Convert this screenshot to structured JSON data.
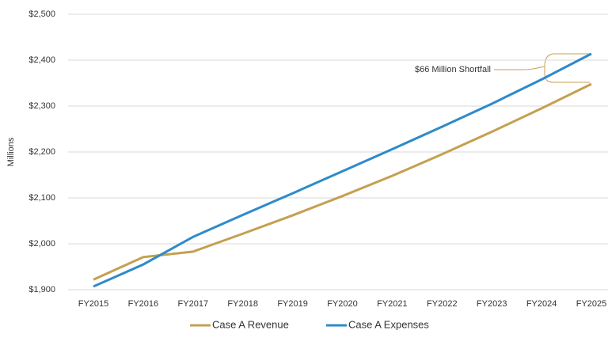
{
  "chart_data": {
    "type": "line",
    "y_label": "Millions",
    "categories": [
      "FY2015",
      "FY2016",
      "FY2017",
      "FY2018",
      "FY2019",
      "FY2020",
      "FY2021",
      "FY2022",
      "FY2023",
      "FY2024",
      "FY2025"
    ],
    "series": [
      {
        "name": "Case A Revenue",
        "color": "#c4a050",
        "values": [
          1922,
          1971,
          1983,
          2022,
          2062,
          2104,
          2148,
          2195,
          2244,
          2295,
          2348
        ]
      },
      {
        "name": "Case A Expenses",
        "color": "#2e8bc9",
        "values": [
          1907,
          1955,
          2015,
          2063,
          2110,
          2158,
          2206,
          2255,
          2305,
          2358,
          2414
        ]
      }
    ],
    "ylim": [
      1900,
      2500
    ],
    "yticks": [
      {
        "value": 1900,
        "label": "$1,900"
      },
      {
        "value": 2000,
        "label": "$2,000"
      },
      {
        "value": 2100,
        "label": "$2,100"
      },
      {
        "value": 2200,
        "label": "$2,200"
      },
      {
        "value": 2300,
        "label": "$2,300"
      },
      {
        "value": 2400,
        "label": "$2,400"
      },
      {
        "value": 2500,
        "label": "$2,500"
      }
    ],
    "grid": true,
    "annotation": "$66 Million Shortfall",
    "legend": "bottom"
  }
}
